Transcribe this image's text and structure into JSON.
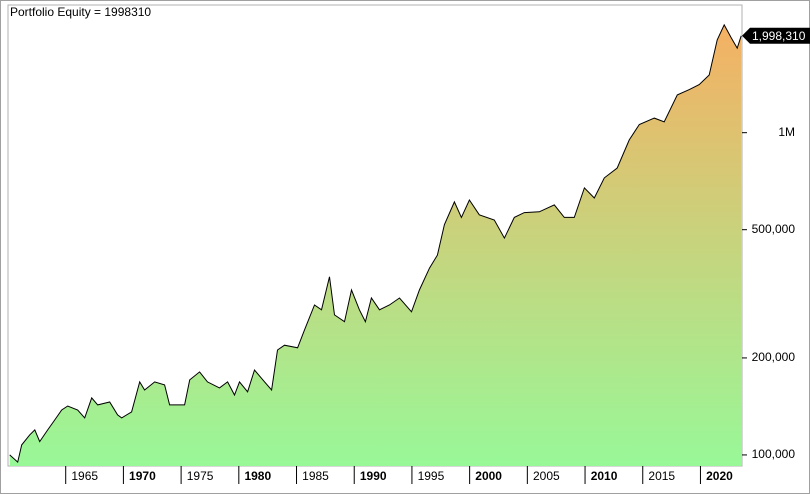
{
  "chart_data": {
    "type": "area",
    "title": "Portfolio Equity = 1998310",
    "log_scale": true,
    "grid": false,
    "color": "#000000",
    "fill_top": "#f5b063",
    "fill_bottom": "#98f898",
    "xlim": [
      1960,
      2023.6
    ],
    "ylim": [
      92400,
      2490000
    ],
    "xticks": [
      1965,
      1970,
      1975,
      1980,
      1985,
      1990,
      1995,
      2000,
      2005,
      2010,
      2015,
      2020
    ],
    "yticks": [
      {
        "value": 100000,
        "label": "100,000"
      },
      {
        "value": 200000,
        "label": "200,000"
      },
      {
        "value": 500000,
        "label": "500,000"
      },
      {
        "value": 1000000,
        "label": "1M"
      }
    ],
    "series": [
      {
        "name": "Portfolio Equity",
        "x": [
          1960.15,
          1960.84,
          1961.19,
          1961.88,
          1962.32,
          1962.75,
          1963.44,
          1964.05,
          1964.65,
          1965.17,
          1966.04,
          1966.65,
          1967.25,
          1967.77,
          1968.81,
          1969.5,
          1969.85,
          1970.71,
          1971.41,
          1971.84,
          1972.71,
          1973.57,
          1974.0,
          1975.3,
          1975.74,
          1976.6,
          1977.29,
          1978.33,
          1979.03,
          1979.63,
          1980.06,
          1980.76,
          1981.36,
          1982.23,
          1982.84,
          1983.35,
          1983.96,
          1985.09,
          1985.69,
          1986.56,
          1987.16,
          1987.86,
          1988.29,
          1989.16,
          1989.76,
          1990.45,
          1990.97,
          1991.49,
          1992.19,
          1993.05,
          1993.92,
          1994.96,
          1995.65,
          1996.52,
          1997.21,
          1997.81,
          1998.68,
          1999.29,
          1999.98,
          2000.84,
          2002.14,
          2003.01,
          2003.87,
          2004.74,
          2006.04,
          2007.34,
          2008.2,
          2009.07,
          2009.94,
          2010.8,
          2011.67,
          2012.79,
          2013.83,
          2014.7,
          2016.0,
          2016.86,
          2017.99,
          2019.03,
          2019.89,
          2020.76,
          2021.45,
          2022.06,
          2022.66,
          2023.18,
          2023.53
        ],
        "values": [
          100000,
          95000,
          107400,
          115400,
          119600,
          110000,
          119600,
          128400,
          137900,
          141900,
          137900,
          130300,
          150300,
          143000,
          146000,
          133100,
          130300,
          136000,
          168500,
          159000,
          168500,
          165000,
          143000,
          143000,
          171000,
          181000,
          168500,
          161500,
          168500,
          153500,
          168500,
          157000,
          183500,
          168500,
          159000,
          211600,
          219000,
          215000,
          244400,
          292000,
          282000,
          357000,
          272000,
          259000,
          325000,
          282000,
          259000,
          307000,
          282000,
          292000,
          307000,
          278000,
          325000,
          380000,
          417000,
          518000,
          610000,
          546000,
          618000,
          556000,
          536000,
          471000,
          546000,
          565000,
          568000,
          597000,
          546000,
          546000,
          674000,
          627000,
          724000,
          777000,
          949000,
          1060000,
          1110000,
          1080000,
          1310000,
          1360000,
          1410000,
          1510000,
          1940000,
          2160000,
          1970000,
          1830000,
          1998310
        ],
        "value_labels": [
          null,
          null,
          null,
          null,
          null,
          null,
          null,
          null,
          null,
          null,
          null,
          null,
          null,
          null,
          null,
          null,
          null,
          null,
          null,
          null,
          null,
          null,
          null,
          null,
          null,
          null,
          null,
          null,
          null,
          null,
          null,
          null,
          null,
          null,
          null,
          null,
          null,
          null,
          null,
          null,
          null,
          null,
          null,
          null,
          null,
          null,
          null,
          null,
          null,
          null,
          null,
          null,
          null,
          null,
          null,
          null,
          null,
          null,
          null,
          null,
          null,
          null,
          null,
          null,
          null,
          null,
          null,
          null,
          null,
          null,
          null,
          null,
          null,
          null,
          null,
          null,
          null,
          null,
          null,
          null,
          null,
          null,
          null,
          null,
          "1,998,310"
        ]
      }
    ]
  }
}
